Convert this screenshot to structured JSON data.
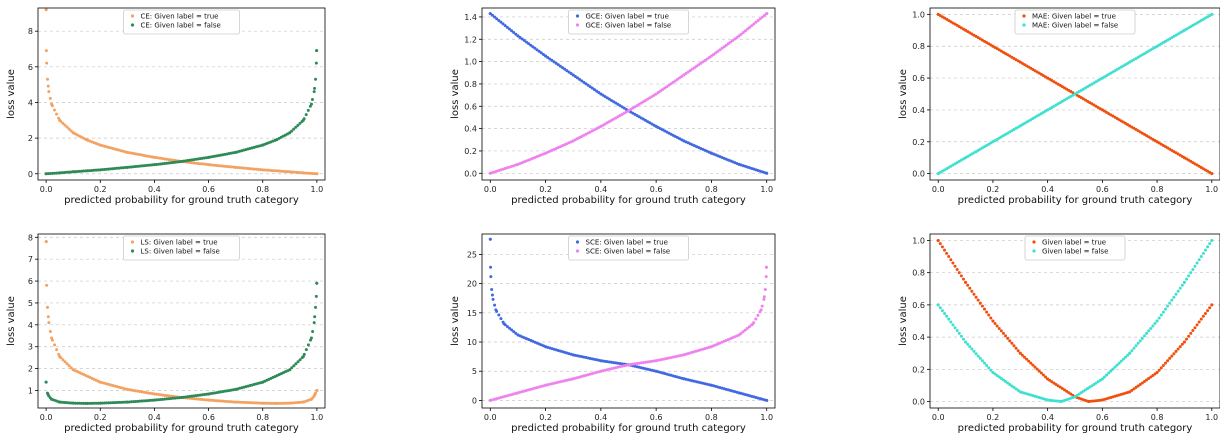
{
  "chart_data": [
    {
      "type": "scatter",
      "xlabel": "predicted probability for ground truth category",
      "ylabel": "loss value",
      "xlim": [
        -0.03,
        1.03
      ],
      "ylim": [
        -0.35,
        9.3
      ],
      "xticks": [
        0.0,
        0.2,
        0.4,
        0.6,
        0.8,
        1.0
      ],
      "xtick_labels": [
        "0.0",
        "0.2",
        "0.4",
        "0.6",
        "0.8",
        "1.0"
      ],
      "yticks": [
        0,
        2,
        4,
        6,
        8
      ],
      "ytick_labels": [
        "0",
        "2",
        "4",
        "6",
        "8"
      ],
      "grid": "horizontal dashed",
      "legend_position": "top-center",
      "series": [
        {
          "name": "CE: Given label = true",
          "color": "#f4a261",
          "x": [
            0.0001,
            0.001,
            0.002,
            0.005,
            0.01,
            0.02,
            0.05,
            0.1,
            0.15,
            0.2,
            0.3,
            0.4,
            0.5,
            0.6,
            0.7,
            0.8,
            0.9,
            0.95,
            1.0
          ],
          "y": [
            9.21,
            6.91,
            6.21,
            5.3,
            4.61,
            3.91,
            3.0,
            2.3,
            1.9,
            1.61,
            1.2,
            0.92,
            0.69,
            0.51,
            0.36,
            0.22,
            0.11,
            0.05,
            0.0
          ]
        },
        {
          "name": "CE: Given label = false",
          "color": "#2e8b57",
          "x": [
            0.0,
            0.05,
            0.1,
            0.2,
            0.3,
            0.4,
            0.5,
            0.6,
            0.7,
            0.8,
            0.85,
            0.9,
            0.95,
            0.98,
            0.99,
            0.995,
            0.998,
            0.999
          ],
          "y": [
            0.0,
            0.05,
            0.11,
            0.22,
            0.36,
            0.51,
            0.69,
            0.92,
            1.2,
            1.61,
            1.9,
            2.3,
            3.0,
            3.91,
            4.61,
            5.3,
            6.21,
            6.91
          ]
        }
      ]
    },
    {
      "type": "scatter",
      "xlabel": "predicted probability for ground truth category",
      "ylabel": "loss value",
      "xlim": [
        -0.03,
        1.03
      ],
      "ylim": [
        -0.06,
        1.48
      ],
      "xticks": [
        0.0,
        0.2,
        0.4,
        0.6,
        0.8,
        1.0
      ],
      "xtick_labels": [
        "0.0",
        "0.2",
        "0.4",
        "0.6",
        "0.8",
        "1.0"
      ],
      "yticks": [
        0.0,
        0.2,
        0.4,
        0.6,
        0.8,
        1.0,
        1.2,
        1.4
      ],
      "ytick_labels": [
        "0.0",
        "0.2",
        "0.4",
        "0.6",
        "0.8",
        "1.0",
        "1.2",
        "1.4"
      ],
      "grid": "horizontal dashed",
      "legend_position": "top-center",
      "series": [
        {
          "name": "GCE: Given label = true",
          "color": "#4169e1",
          "x": [
            0.0,
            0.1,
            0.2,
            0.3,
            0.4,
            0.5,
            0.6,
            0.7,
            0.8,
            0.9,
            1.0
          ],
          "y": [
            1.43,
            1.23,
            1.05,
            0.88,
            0.71,
            0.56,
            0.42,
            0.29,
            0.18,
            0.08,
            0.0
          ]
        },
        {
          "name": "GCE: Given label = false",
          "color": "#ee82ee",
          "x": [
            0.0,
            0.1,
            0.2,
            0.3,
            0.4,
            0.5,
            0.6,
            0.7,
            0.8,
            0.9,
            1.0
          ],
          "y": [
            0.0,
            0.08,
            0.18,
            0.29,
            0.42,
            0.56,
            0.71,
            0.88,
            1.05,
            1.23,
            1.43
          ]
        }
      ]
    },
    {
      "type": "scatter",
      "xlabel": "predicted probability for ground truth category",
      "ylabel": "loss value",
      "xlim": [
        -0.03,
        1.03
      ],
      "ylim": [
        -0.04,
        1.04
      ],
      "xticks": [
        0.0,
        0.2,
        0.4,
        0.6,
        0.8,
        1.0
      ],
      "xtick_labels": [
        "0.0",
        "0.2",
        "0.4",
        "0.6",
        "0.8",
        "1.0"
      ],
      "yticks": [
        0.0,
        0.2,
        0.4,
        0.6,
        0.8,
        1.0
      ],
      "ytick_labels": [
        "0.0",
        "0.2",
        "0.4",
        "0.6",
        "0.8",
        "1.0"
      ],
      "grid": "horizontal dashed",
      "legend_position": "top-center",
      "series": [
        {
          "name": "MAE: Given label = true",
          "color": "#f0500e",
          "x": [
            0.0,
            0.1,
            0.2,
            0.3,
            0.4,
            0.5,
            0.6,
            0.7,
            0.8,
            0.9,
            1.0
          ],
          "y": [
            1.0,
            0.9,
            0.8,
            0.7,
            0.6,
            0.5,
            0.4,
            0.3,
            0.2,
            0.1,
            0.0
          ]
        },
        {
          "name": "MAE: Given label = false",
          "color": "#40e0d0",
          "x": [
            0.0,
            0.1,
            0.2,
            0.3,
            0.4,
            0.5,
            0.6,
            0.7,
            0.8,
            0.9,
            1.0
          ],
          "y": [
            0.0,
            0.1,
            0.2,
            0.3,
            0.4,
            0.5,
            0.6,
            0.7,
            0.8,
            0.9,
            1.0
          ]
        }
      ]
    },
    {
      "type": "scatter",
      "xlabel": "predicted probability for ground truth category",
      "ylabel": "loss value",
      "xlim": [
        -0.03,
        1.03
      ],
      "ylim": [
        0.2,
        8.15
      ],
      "xticks": [
        0.0,
        0.2,
        0.4,
        0.6,
        0.8,
        1.0
      ],
      "xtick_labels": [
        "0.0",
        "0.2",
        "0.4",
        "0.6",
        "0.8",
        "1.0"
      ],
      "yticks": [
        1,
        2,
        3,
        4,
        5,
        6,
        7,
        8
      ],
      "ytick_labels": [
        "1",
        "2",
        "3",
        "4",
        "5",
        "6",
        "7",
        "8"
      ],
      "grid": "horizontal dashed",
      "legend_position": "top-center",
      "series": [
        {
          "name": "LS: Given label = true",
          "color": "#f4a261",
          "x": [
            0.0004,
            0.002,
            0.005,
            0.01,
            0.02,
            0.05,
            0.1,
            0.2,
            0.3,
            0.4,
            0.5,
            0.6,
            0.7,
            0.8,
            0.85,
            0.9,
            0.95,
            0.98,
            0.99,
            0.995,
            1.0
          ],
          "y": [
            7.8,
            5.8,
            4.8,
            4.1,
            3.4,
            2.55,
            1.95,
            1.38,
            1.05,
            0.84,
            0.68,
            0.56,
            0.47,
            0.42,
            0.41,
            0.42,
            0.47,
            0.6,
            0.75,
            0.88,
            1.0
          ]
        },
        {
          "name": "LS: Given label = false",
          "color": "#2e8b57",
          "x": [
            0.0,
            0.005,
            0.01,
            0.02,
            0.05,
            0.1,
            0.15,
            0.2,
            0.3,
            0.4,
            0.5,
            0.6,
            0.7,
            0.8,
            0.9,
            0.95,
            0.98,
            0.99,
            0.995,
            0.998,
            0.9996
          ],
          "y": [
            1.38,
            0.88,
            0.75,
            0.6,
            0.47,
            0.42,
            0.41,
            0.42,
            0.47,
            0.56,
            0.68,
            0.84,
            1.05,
            1.38,
            1.95,
            2.55,
            3.4,
            4.1,
            4.8,
            5.3,
            5.9
          ]
        }
      ]
    },
    {
      "type": "scatter",
      "xlabel": "predicted probability for ground truth category",
      "ylabel": "loss value",
      "xlim": [
        -0.03,
        1.03
      ],
      "ylim": [
        -1.3,
        28.5
      ],
      "xticks": [
        0.0,
        0.2,
        0.4,
        0.6,
        0.8,
        1.0
      ],
      "xtick_labels": [
        "0.0",
        "0.2",
        "0.4",
        "0.6",
        "0.8",
        "1.0"
      ],
      "yticks": [
        0,
        5,
        10,
        15,
        20,
        25
      ],
      "ytick_labels": [
        "0",
        "5",
        "10",
        "15",
        "20",
        "25"
      ],
      "grid": "horizontal dashed",
      "legend_position": "top-center",
      "series": [
        {
          "name": "SCE: Given label = true",
          "color": "#4169e1",
          "x": [
            0.0001,
            0.001,
            0.002,
            0.005,
            0.01,
            0.02,
            0.05,
            0.1,
            0.2,
            0.3,
            0.4,
            0.5,
            0.6,
            0.7,
            0.8,
            0.9,
            1.0
          ],
          "y": [
            27.6,
            22.8,
            21.2,
            19.0,
            17.3,
            15.5,
            13.1,
            11.2,
            9.2,
            7.8,
            6.8,
            6.1,
            5.0,
            3.7,
            2.6,
            1.3,
            0.0
          ]
        },
        {
          "name": "SCE: Given label = false",
          "color": "#ee82ee",
          "x": [
            0.0,
            0.1,
            0.2,
            0.3,
            0.4,
            0.5,
            0.6,
            0.7,
            0.8,
            0.9,
            0.95,
            0.98,
            0.99,
            0.995,
            0.998,
            0.999
          ],
          "y": [
            0.0,
            1.3,
            2.6,
            3.7,
            5.0,
            6.1,
            6.8,
            7.8,
            9.2,
            11.2,
            13.1,
            15.5,
            17.3,
            19.0,
            21.2,
            22.8
          ]
        }
      ]
    },
    {
      "type": "scatter",
      "xlabel": "predicted probability for ground truth category",
      "ylabel": "loss value",
      "xlim": [
        -0.03,
        1.03
      ],
      "ylim": [
        -0.04,
        1.04
      ],
      "xticks": [
        0.0,
        0.2,
        0.4,
        0.6,
        0.8,
        1.0
      ],
      "xtick_labels": [
        "0.0",
        "0.2",
        "0.4",
        "0.6",
        "0.8",
        "1.0"
      ],
      "yticks": [
        0.0,
        0.2,
        0.4,
        0.6,
        0.8,
        1.0
      ],
      "ytick_labels": [
        "0.0",
        "0.2",
        "0.4",
        "0.6",
        "0.8",
        "1.0"
      ],
      "grid": "horizontal dashed",
      "legend_position": "top-center",
      "series": [
        {
          "name": "Given label = true",
          "color": "#f0500e",
          "x": [
            0.0,
            0.1,
            0.2,
            0.3,
            0.4,
            0.5,
            0.55,
            0.6,
            0.7,
            0.8,
            0.9,
            1.0
          ],
          "y": [
            1.0,
            0.74,
            0.5,
            0.3,
            0.14,
            0.03,
            0.0,
            0.01,
            0.06,
            0.18,
            0.37,
            0.6
          ]
        },
        {
          "name": "Given label = false",
          "color": "#40e0d0",
          "x": [
            0.0,
            0.1,
            0.2,
            0.3,
            0.4,
            0.45,
            0.5,
            0.6,
            0.7,
            0.8,
            0.9,
            1.0
          ],
          "y": [
            0.6,
            0.37,
            0.18,
            0.06,
            0.01,
            0.0,
            0.03,
            0.14,
            0.3,
            0.5,
            0.74,
            1.0
          ]
        }
      ]
    }
  ]
}
